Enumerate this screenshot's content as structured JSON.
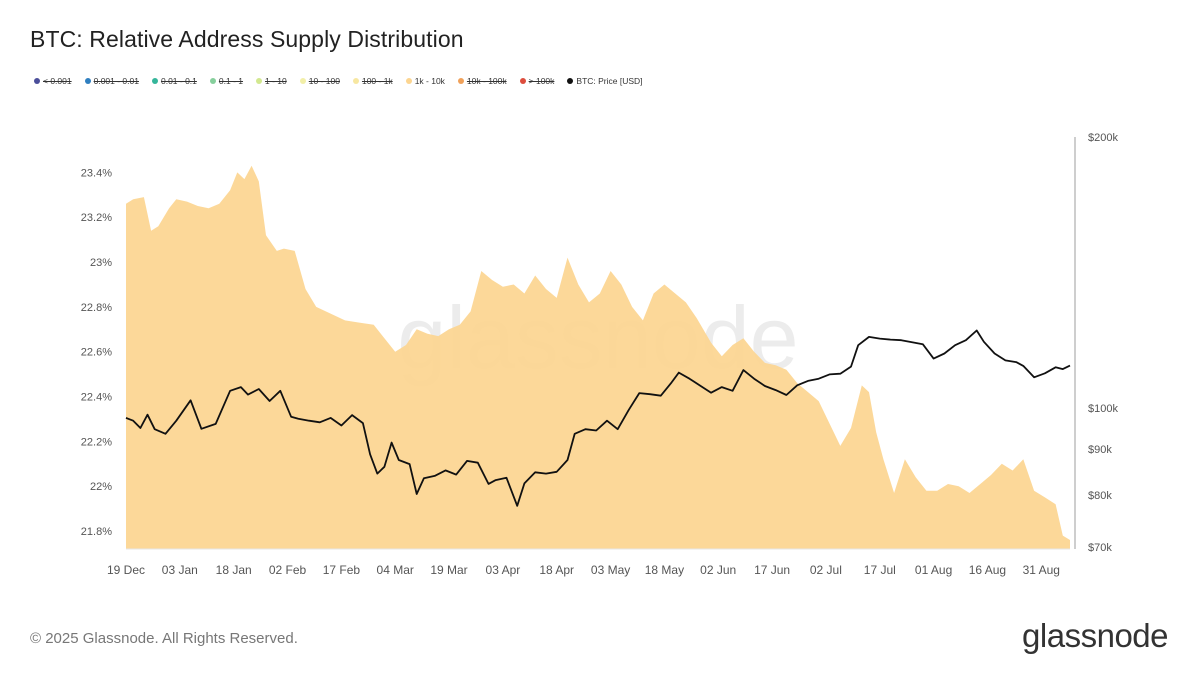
{
  "title": "BTC: Relative Address Supply Distribution",
  "legend": [
    {
      "label": "< 0.001",
      "color": "#4b4e9a",
      "active": false
    },
    {
      "label": "0.001 - 0.01",
      "color": "#2f7fc0",
      "active": false
    },
    {
      "label": "0.01 - 0.1",
      "color": "#35b59a",
      "active": false
    },
    {
      "label": "0.1 - 1",
      "color": "#86cf9c",
      "active": false
    },
    {
      "label": "1 - 10",
      "color": "#d2e88f",
      "active": false
    },
    {
      "label": "10 - 100",
      "color": "#f2efa8",
      "active": false
    },
    {
      "label": "100 - 1k",
      "color": "#f7e7a1",
      "active": false
    },
    {
      "label": "1k - 10k",
      "color": "#fcd590",
      "active": true
    },
    {
      "label": "10k - 100k",
      "color": "#f0a15a",
      "active": false
    },
    {
      "label": "> 100k",
      "color": "#dd4d3d",
      "active": false
    },
    {
      "label": "BTC: Price [USD]",
      "color": "#111111",
      "active": true
    }
  ],
  "footer": "© 2025 Glassnode. All Rights Reserved.",
  "brand": "glassnode",
  "watermark": "glassnode",
  "chart_data": {
    "type": "area",
    "x_tick_labels": [
      "19 Dec",
      "03 Jan",
      "18 Jan",
      "02 Feb",
      "17 Feb",
      "04 Mar",
      "19 Mar",
      "03 Apr",
      "18 Apr",
      "03 May",
      "18 May",
      "02 Jun",
      "17 Jun",
      "02 Jul",
      "17 Jul",
      "01 Aug",
      "16 Aug",
      "31 Aug"
    ],
    "x_range": [
      "2024-12-19",
      "2025-09-08"
    ],
    "left_axis": {
      "ticks": [
        "23.4%",
        "23.2%",
        "23%",
        "22.8%",
        "22.6%",
        "22.4%",
        "22.2%",
        "22%",
        "21.8%"
      ],
      "min": 21.72,
      "max": 23.5
    },
    "right_axis": {
      "ticks": [
        "$200k",
        "$100k",
        "$90k",
        "$80k",
        "$70k"
      ],
      "tick_values": [
        200000,
        100000,
        90000,
        80000,
        70000
      ],
      "scale": "log"
    },
    "grid": false,
    "legend_position": "top-left",
    "series": [
      {
        "name": "1k - 10k",
        "axis": "left",
        "unit": "%",
        "color": "#fcd590",
        "x": [
          "2024-12-19",
          "2024-12-21",
          "2024-12-24",
          "2024-12-26",
          "2024-12-28",
          "2024-12-31",
          "2025-01-02",
          "2025-01-05",
          "2025-01-08",
          "2025-01-11",
          "2025-01-14",
          "2025-01-17",
          "2025-01-19",
          "2025-01-21",
          "2025-01-23",
          "2025-01-25",
          "2025-01-27",
          "2025-01-30",
          "2025-02-01",
          "2025-02-04",
          "2025-02-07",
          "2025-02-10",
          "2025-02-14",
          "2025-02-18",
          "2025-02-22",
          "2025-02-26",
          "2025-03-01",
          "2025-03-04",
          "2025-03-07",
          "2025-03-10",
          "2025-03-13",
          "2025-03-16",
          "2025-03-19",
          "2025-03-22",
          "2025-03-25",
          "2025-03-28",
          "2025-03-31",
          "2025-04-03",
          "2025-04-06",
          "2025-04-09",
          "2025-04-12",
          "2025-04-15",
          "2025-04-18",
          "2025-04-21",
          "2025-04-24",
          "2025-04-27",
          "2025-04-30",
          "2025-05-03",
          "2025-05-06",
          "2025-05-09",
          "2025-05-12",
          "2025-05-15",
          "2025-05-18",
          "2025-05-21",
          "2025-05-24",
          "2025-05-27",
          "2025-05-31",
          "2025-06-03",
          "2025-06-06",
          "2025-06-09",
          "2025-06-12",
          "2025-06-15",
          "2025-06-18",
          "2025-06-21",
          "2025-06-24",
          "2025-06-27",
          "2025-06-30",
          "2025-07-03",
          "2025-07-06",
          "2025-07-09",
          "2025-07-12",
          "2025-07-14",
          "2025-07-16",
          "2025-07-18",
          "2025-07-21",
          "2025-07-24",
          "2025-07-27",
          "2025-07-30",
          "2025-08-02",
          "2025-08-05",
          "2025-08-08",
          "2025-08-11",
          "2025-08-14",
          "2025-08-17",
          "2025-08-20",
          "2025-08-23",
          "2025-08-26",
          "2025-08-29",
          "2025-09-01",
          "2025-09-04",
          "2025-09-06",
          "2025-09-08"
        ],
        "values": [
          23.26,
          23.28,
          23.29,
          23.14,
          23.16,
          23.24,
          23.28,
          23.27,
          23.25,
          23.24,
          23.26,
          23.32,
          23.4,
          23.37,
          23.43,
          23.36,
          23.12,
          23.05,
          23.06,
          23.05,
          22.88,
          22.8,
          22.77,
          22.74,
          22.73,
          22.72,
          22.66,
          22.6,
          22.63,
          22.7,
          22.68,
          22.67,
          22.7,
          22.72,
          22.78,
          22.96,
          22.92,
          22.89,
          22.9,
          22.86,
          22.94,
          22.88,
          22.84,
          23.02,
          22.9,
          22.82,
          22.86,
          22.96,
          22.9,
          22.8,
          22.74,
          22.86,
          22.9,
          22.86,
          22.82,
          22.75,
          22.64,
          22.58,
          22.63,
          22.66,
          22.6,
          22.55,
          22.54,
          22.52,
          22.46,
          22.42,
          22.38,
          22.28,
          22.18,
          22.26,
          22.45,
          22.42,
          22.24,
          22.12,
          21.97,
          22.12,
          22.04,
          21.98,
          21.98,
          22.01,
          22.0,
          21.97,
          22.01,
          22.05,
          22.1,
          22.07,
          22.12,
          21.98,
          21.95,
          21.92,
          21.78,
          21.76
        ]
      },
      {
        "name": "BTC: Price [USD]",
        "axis": "right",
        "unit": "USD",
        "color": "#111111",
        "x": [
          "2024-12-19",
          "2024-12-21",
          "2024-12-23",
          "2024-12-25",
          "2024-12-27",
          "2024-12-30",
          "2025-01-02",
          "2025-01-06",
          "2025-01-09",
          "2025-01-13",
          "2025-01-17",
          "2025-01-20",
          "2025-01-22",
          "2025-01-25",
          "2025-01-28",
          "2025-01-31",
          "2025-02-03",
          "2025-02-05",
          "2025-02-08",
          "2025-02-11",
          "2025-02-14",
          "2025-02-17",
          "2025-02-20",
          "2025-02-23",
          "2025-02-25",
          "2025-02-27",
          "2025-03-01",
          "2025-03-03",
          "2025-03-05",
          "2025-03-08",
          "2025-03-10",
          "2025-03-12",
          "2025-03-15",
          "2025-03-18",
          "2025-03-21",
          "2025-03-24",
          "2025-03-27",
          "2025-03-30",
          "2025-04-01",
          "2025-04-04",
          "2025-04-07",
          "2025-04-09",
          "2025-04-12",
          "2025-04-15",
          "2025-04-18",
          "2025-04-21",
          "2025-04-23",
          "2025-04-26",
          "2025-04-29",
          "2025-05-02",
          "2025-05-05",
          "2025-05-08",
          "2025-05-11",
          "2025-05-14",
          "2025-05-17",
          "2025-05-20",
          "2025-05-22",
          "2025-05-25",
          "2025-05-28",
          "2025-05-31",
          "2025-06-03",
          "2025-06-06",
          "2025-06-09",
          "2025-06-12",
          "2025-06-15",
          "2025-06-18",
          "2025-06-21",
          "2025-06-24",
          "2025-06-27",
          "2025-06-30",
          "2025-07-03",
          "2025-07-06",
          "2025-07-09",
          "2025-07-11",
          "2025-07-14",
          "2025-07-17",
          "2025-07-20",
          "2025-07-23",
          "2025-07-26",
          "2025-07-29",
          "2025-08-01",
          "2025-08-04",
          "2025-08-07",
          "2025-08-10",
          "2025-08-13",
          "2025-08-15",
          "2025-08-18",
          "2025-08-21",
          "2025-08-24",
          "2025-08-26",
          "2025-08-29",
          "2025-09-01",
          "2025-09-04",
          "2025-09-06",
          "2025-09-08"
        ],
        "values": [
          97500,
          96800,
          95000,
          98300,
          94700,
          93600,
          96800,
          102000,
          94800,
          96000,
          104500,
          105500,
          103500,
          105000,
          101800,
          104500,
          97800,
          97300,
          96800,
          96400,
          97500,
          95600,
          98200,
          96200,
          88800,
          84500,
          86000,
          91500,
          87500,
          86600,
          80200,
          83500,
          84000,
          85200,
          84300,
          87300,
          86900,
          82300,
          83100,
          83600,
          77800,
          82400,
          84800,
          84500,
          84900,
          87500,
          93600,
          94700,
          94400,
          96800,
          94700,
          99400,
          103900,
          103600,
          103200,
          106800,
          109500,
          107800,
          105900,
          104000,
          105500,
          104500,
          110200,
          107800,
          105800,
          104700,
          103400,
          106000,
          107200,
          107800,
          109000,
          109200,
          111200,
          117500,
          120000,
          119500,
          119200,
          119000,
          118400,
          117800,
          113500,
          115000,
          117500,
          119000,
          122000,
          118500,
          115000,
          113000,
          112500,
          111400,
          108200,
          109300,
          111000,
          110500,
          111500
        ]
      }
    ]
  }
}
